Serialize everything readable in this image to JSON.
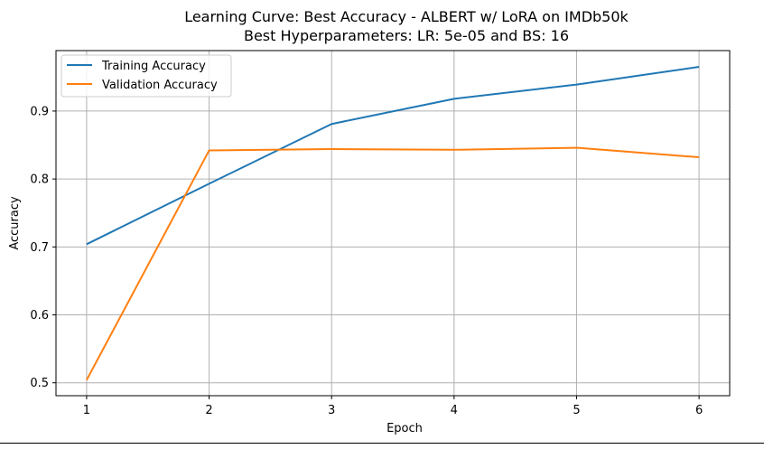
{
  "colors": {
    "training": "#1f77b4",
    "validation": "#ff7f0e",
    "grid": "#b0b0b0",
    "axes": "#000000",
    "legend_border": "#cccccc"
  },
  "chart_data": {
    "type": "line",
    "title_line1": "Learning Curve: Best Accuracy - ALBERT w/ LoRA on IMDb50k",
    "title_line2": "Best Hyperparameters: LR: 5e-05 and BS: 16",
    "xlabel": "Epoch",
    "ylabel": "Accuracy",
    "x": [
      1,
      2,
      3,
      4,
      5,
      6
    ],
    "x_ticks": [
      "1",
      "2",
      "3",
      "4",
      "5",
      "6"
    ],
    "y_ticks": [
      "0.5",
      "0.6",
      "0.7",
      "0.8",
      "0.9"
    ],
    "y_tick_values": [
      0.5,
      0.6,
      0.7,
      0.8,
      0.9
    ],
    "xlim": [
      0.75,
      6.25
    ],
    "ylim": [
      0.481,
      0.989
    ],
    "grid": true,
    "legend_position": "upper-left",
    "series": [
      {
        "name": "Training Accuracy",
        "color_key": "training",
        "values": [
          0.704,
          0.793,
          0.881,
          0.918,
          0.939,
          0.965
        ]
      },
      {
        "name": "Validation Accuracy",
        "color_key": "validation",
        "values": [
          0.504,
          0.842,
          0.844,
          0.843,
          0.846,
          0.832
        ]
      }
    ]
  }
}
